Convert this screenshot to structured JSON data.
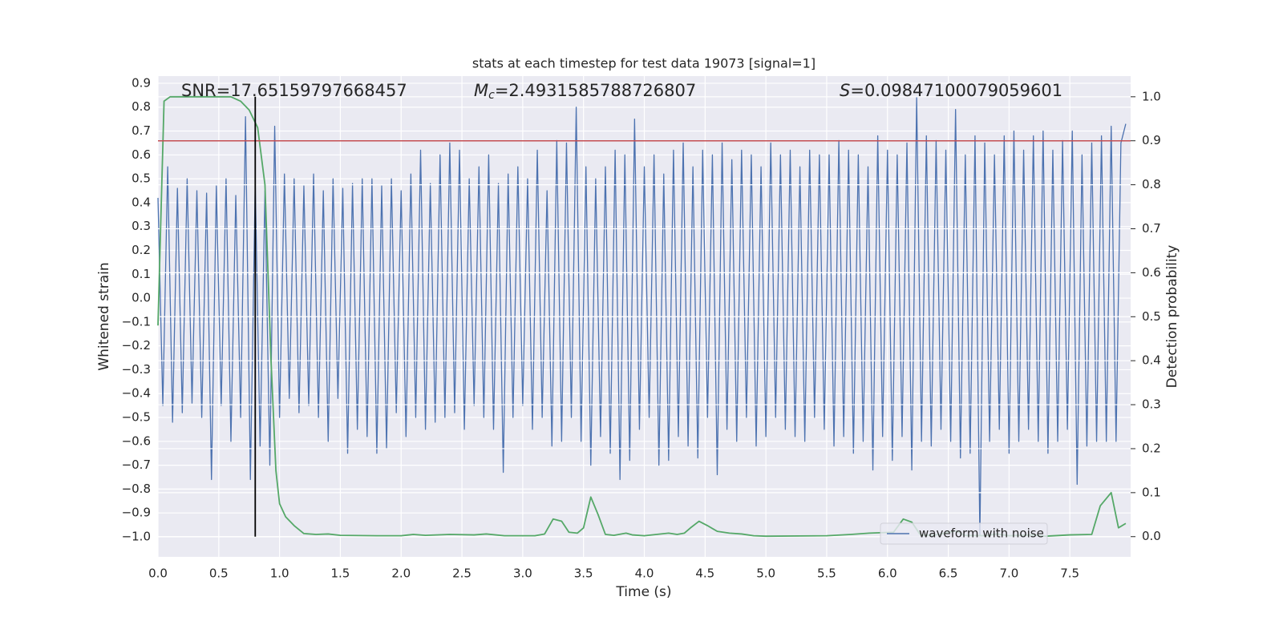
{
  "chart_data": {
    "type": "line",
    "title": "stats at each timestep for test data 19073 [signal=1]",
    "xlabel": "Time (s)",
    "ylabel": "Whitened strain",
    "y2label": "Detection probability",
    "annotations": [
      {
        "text": "SNR=17.65159797668457"
      },
      {
        "symbol": "M",
        "subscript": "c",
        "text": "=2.4931585788726807"
      },
      {
        "symbol": "S",
        "text": "=0.09847100079059601"
      }
    ],
    "xlim": [
      0,
      8
    ],
    "ylim": [
      -1.084,
      0.93
    ],
    "y2lim": [
      -0.046,
      1.047
    ],
    "xticks": [
      {
        "value": 0,
        "label": "0.0"
      },
      {
        "value": 0.5,
        "label": "0.5"
      },
      {
        "value": 1,
        "label": "1.0"
      },
      {
        "value": 1.5,
        "label": "1.5"
      },
      {
        "value": 2,
        "label": "2.0"
      },
      {
        "value": 2.5,
        "label": "2.5"
      },
      {
        "value": 3,
        "label": "3.0"
      },
      {
        "value": 3.5,
        "label": "3.5"
      },
      {
        "value": 4,
        "label": "4.0"
      },
      {
        "value": 4.5,
        "label": "4.5"
      },
      {
        "value": 5,
        "label": "5.0"
      },
      {
        "value": 5.5,
        "label": "5.5"
      },
      {
        "value": 6,
        "label": "6.0"
      },
      {
        "value": 6.5,
        "label": "6.5"
      },
      {
        "value": 7,
        "label": "7.0"
      },
      {
        "value": 7.5,
        "label": "7.5"
      }
    ],
    "yticks": [
      {
        "value": -1,
        "label": "−1.0"
      },
      {
        "value": -0.9,
        "label": "−0.9"
      },
      {
        "value": -0.8,
        "label": "−0.8"
      },
      {
        "value": -0.7,
        "label": "−0.7"
      },
      {
        "value": -0.6,
        "label": "−0.6"
      },
      {
        "value": -0.5,
        "label": "−0.5"
      },
      {
        "value": -0.4,
        "label": "−0.4"
      },
      {
        "value": -0.3,
        "label": "−0.3"
      },
      {
        "value": -0.2,
        "label": "−0.2"
      },
      {
        "value": -0.1,
        "label": "−0.1"
      },
      {
        "value": 0,
        "label": "0.0"
      },
      {
        "value": 0.1,
        "label": "0.1"
      },
      {
        "value": 0.2,
        "label": "0.2"
      },
      {
        "value": 0.3,
        "label": "0.3"
      },
      {
        "value": 0.4,
        "label": "0.4"
      },
      {
        "value": 0.5,
        "label": "0.5"
      },
      {
        "value": 0.6,
        "label": "0.6"
      },
      {
        "value": 0.7,
        "label": "0.7"
      },
      {
        "value": 0.8,
        "label": "0.8"
      },
      {
        "value": 0.9,
        "label": "0.9"
      }
    ],
    "y2ticks": [
      {
        "value": 0,
        "label": "0.0"
      },
      {
        "value": 0.1,
        "label": "0.1"
      },
      {
        "value": 0.2,
        "label": "0.2"
      },
      {
        "value": 0.3,
        "label": "0.3"
      },
      {
        "value": 0.4,
        "label": "0.4"
      },
      {
        "value": 0.5,
        "label": "0.5"
      },
      {
        "value": 0.6,
        "label": "0.6"
      },
      {
        "value": 0.7,
        "label": "0.7"
      },
      {
        "value": 0.8,
        "label": "0.8"
      },
      {
        "value": 0.9,
        "label": "0.9"
      },
      {
        "value": 1,
        "label": "1.0"
      }
    ],
    "grid": true,
    "legend": "lower right",
    "threshold": {
      "value": 0.9,
      "axis": "y2",
      "color": "#c44e52"
    },
    "marker_line": {
      "x": 0.8,
      "ymin": 0,
      "ymax": 1,
      "axis": "y2",
      "color": "#000000"
    },
    "series": [
      {
        "name": "waveform with noise",
        "color": "#4c72b0",
        "x": [
          0,
          0.04,
          0.08,
          0.12,
          0.16,
          0.2,
          0.24,
          0.28,
          0.32,
          0.36,
          0.4,
          0.44,
          0.48,
          0.52,
          0.56,
          0.6,
          0.64,
          0.68,
          0.72,
          0.76,
          0.8,
          0.84,
          0.88,
          0.92,
          0.96,
          1,
          1.04,
          1.08,
          1.12,
          1.16,
          1.2,
          1.24,
          1.28,
          1.32,
          1.36,
          1.4,
          1.44,
          1.48,
          1.52,
          1.56,
          1.6,
          1.64,
          1.68,
          1.72,
          1.76,
          1.8,
          1.84,
          1.88,
          1.92,
          1.96,
          2,
          2.04,
          2.08,
          2.12,
          2.16,
          2.2,
          2.24,
          2.28,
          2.32,
          2.36,
          2.4,
          2.44,
          2.48,
          2.52,
          2.56,
          2.6,
          2.64,
          2.68,
          2.72,
          2.76,
          2.8,
          2.84,
          2.88,
          2.92,
          2.96,
          3,
          3.04,
          3.08,
          3.12,
          3.16,
          3.2,
          3.24,
          3.28,
          3.32,
          3.36,
          3.4,
          3.44,
          3.48,
          3.52,
          3.56,
          3.6,
          3.64,
          3.68,
          3.72,
          3.76,
          3.8,
          3.84,
          3.88,
          3.92,
          3.96,
          4,
          4.04,
          4.08,
          4.12,
          4.16,
          4.2,
          4.24,
          4.28,
          4.32,
          4.36,
          4.4,
          4.44,
          4.48,
          4.52,
          4.56,
          4.6,
          4.64,
          4.68,
          4.72,
          4.76,
          4.8,
          4.84,
          4.88,
          4.92,
          4.96,
          5,
          5.04,
          5.08,
          5.12,
          5.16,
          5.2,
          5.24,
          5.28,
          5.32,
          5.36,
          5.4,
          5.44,
          5.48,
          5.52,
          5.56,
          5.6,
          5.64,
          5.68,
          5.72,
          5.76,
          5.8,
          5.84,
          5.88,
          5.92,
          5.96,
          6,
          6.04,
          6.08,
          6.12,
          6.16,
          6.2,
          6.24,
          6.28,
          6.32,
          6.36,
          6.4,
          6.44,
          6.48,
          6.52,
          6.56,
          6.6,
          6.64,
          6.68,
          6.72,
          6.76,
          6.8,
          6.84,
          6.88,
          6.92,
          6.96,
          7,
          7.04,
          7.08,
          7.12,
          7.16,
          7.2,
          7.24,
          7.28,
          7.32,
          7.36,
          7.4,
          7.44,
          7.48,
          7.52,
          7.56,
          7.6,
          7.64,
          7.68,
          7.72,
          7.76,
          7.8,
          7.84,
          7.88,
          7.92,
          7.96
        ],
        "values": [
          0.42,
          -0.45,
          0.55,
          -0.52,
          0.46,
          -0.48,
          0.5,
          -0.44,
          0.45,
          -0.5,
          0.44,
          -0.76,
          0.47,
          -0.45,
          0.5,
          -0.6,
          0.43,
          -0.5,
          0.76,
          -0.76,
          0.48,
          -0.62,
          0.45,
          -0.7,
          0.72,
          -0.5,
          0.52,
          -0.42,
          0.5,
          -0.48,
          0.47,
          -0.45,
          0.52,
          -0.5,
          0.45,
          -0.6,
          0.5,
          -0.42,
          0.46,
          -0.65,
          0.48,
          -0.55,
          0.5,
          -0.58,
          0.5,
          -0.65,
          0.47,
          -0.63,
          0.5,
          -0.48,
          0.45,
          -0.58,
          0.52,
          -0.5,
          0.62,
          -0.55,
          0.48,
          -0.52,
          0.6,
          -0.5,
          0.65,
          -0.48,
          0.62,
          -0.55,
          0.5,
          -0.45,
          0.55,
          -0.5,
          0.6,
          -0.55,
          0.48,
          -0.73,
          0.52,
          -0.5,
          0.55,
          -0.45,
          0.5,
          -0.55,
          0.62,
          -0.5,
          0.45,
          -0.62,
          0.66,
          -0.6,
          0.65,
          -0.5,
          0.8,
          -0.6,
          0.55,
          -0.7,
          0.5,
          -0.58,
          0.55,
          -0.65,
          0.62,
          -0.76,
          0.6,
          -0.68,
          0.75,
          -0.55,
          0.55,
          -0.5,
          0.6,
          -0.7,
          0.52,
          -0.68,
          0.62,
          -0.58,
          0.65,
          -0.62,
          0.55,
          -0.67,
          0.62,
          -0.5,
          0.6,
          -0.74,
          0.65,
          -0.55,
          0.58,
          -0.6,
          0.62,
          -0.5,
          0.6,
          -0.62,
          0.55,
          -0.58,
          0.65,
          -0.5,
          0.6,
          -0.55,
          0.62,
          -0.58,
          0.55,
          -0.6,
          0.62,
          -0.5,
          0.6,
          -0.55,
          0.6,
          -0.62,
          0.66,
          -0.58,
          0.62,
          -0.65,
          0.6,
          -0.6,
          0.55,
          -0.72,
          0.68,
          -0.58,
          0.62,
          -0.68,
          0.6,
          -0.58,
          0.65,
          -0.72,
          0.84,
          -0.6,
          0.68,
          -0.62,
          0.66,
          -0.55,
          0.62,
          -0.6,
          0.79,
          -0.67,
          0.6,
          -0.65,
          0.68,
          -1.0,
          0.65,
          -0.6,
          0.6,
          -0.55,
          0.68,
          -0.65,
          0.7,
          -0.6,
          0.62,
          -0.55,
          0.68,
          -0.6,
          0.7,
          -0.65,
          0.62,
          -0.6,
          0.66,
          -0.55,
          0.7,
          -0.78,
          0.6,
          -0.62,
          0.65,
          -0.6,
          0.68,
          -0.6,
          0.72,
          -0.6,
          0.65,
          0.73
        ]
      },
      {
        "color": "#55a868",
        "axis": "y2",
        "x": [
          0,
          0.05,
          0.1,
          0.6,
          0.68,
          0.75,
          0.82,
          0.88,
          0.93,
          0.97,
          1.0,
          1.05,
          1.12,
          1.2,
          1.3,
          1.4,
          1.5,
          1.8,
          2.0,
          2.1,
          2.2,
          2.4,
          2.6,
          2.7,
          2.85,
          3.1,
          3.18,
          3.25,
          3.32,
          3.38,
          3.45,
          3.5,
          3.56,
          3.62,
          3.68,
          3.75,
          3.85,
          3.9,
          4.0,
          4.1,
          4.2,
          4.27,
          4.33,
          4.38,
          4.45,
          4.52,
          4.6,
          4.7,
          4.8,
          4.9,
          5.0,
          5.5,
          5.7,
          5.85,
          6.05,
          6.13,
          6.2,
          6.27,
          6.35,
          6.43,
          6.5,
          6.57,
          6.63,
          6.8,
          6.9,
          7.0,
          7.2,
          7.3,
          7.5,
          7.68,
          7.75,
          7.84,
          7.9,
          7.96
        ],
        "values": [
          0.48,
          0.99,
          1.0,
          1.0,
          0.99,
          0.97,
          0.93,
          0.8,
          0.4,
          0.15,
          0.075,
          0.045,
          0.025,
          0.007,
          0.005,
          0.006,
          0.003,
          0.002,
          0.002,
          0.005,
          0.003,
          0.005,
          0.004,
          0.006,
          0.002,
          0.002,
          0.006,
          0.04,
          0.035,
          0.01,
          0.008,
          0.02,
          0.09,
          0.05,
          0.005,
          0.003,
          0.008,
          0.004,
          0.002,
          0.005,
          0.008,
          0.005,
          0.008,
          0.02,
          0.035,
          0.025,
          0.012,
          0.008,
          0.006,
          0.002,
          0.001,
          0.002,
          0.005,
          0.008,
          0.01,
          0.04,
          0.033,
          0.004,
          0.003,
          0.005,
          0.01,
          0.013,
          0.003,
          0.002,
          0.006,
          0.002,
          0.004,
          0.001,
          0.004,
          0.005,
          0.07,
          0.1,
          0.02,
          0.03
        ]
      }
    ]
  }
}
